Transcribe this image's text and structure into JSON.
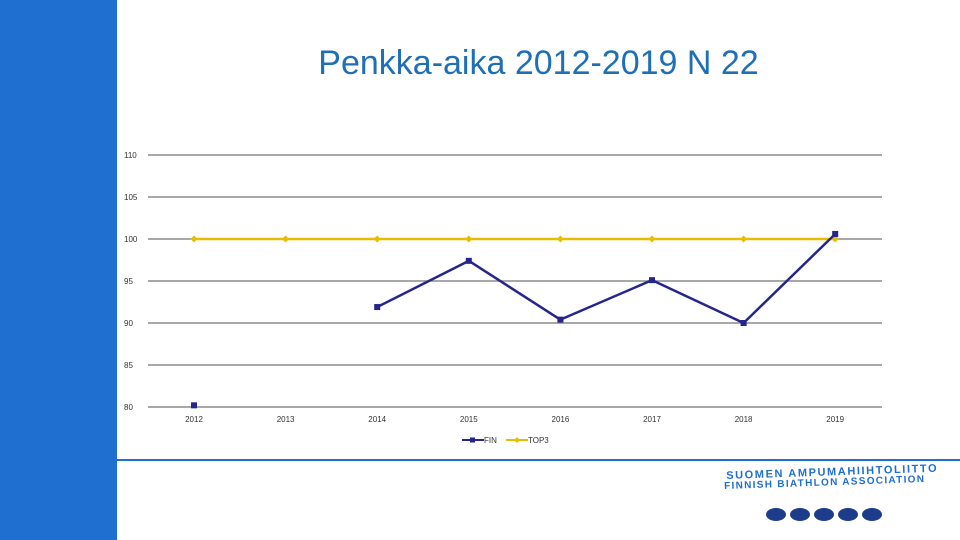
{
  "title": "Penkka-aika 2012-2019 N 22",
  "chart_data": {
    "type": "line",
    "title": "Penkka-aika 2012-2019 N 22",
    "categories": [
      "2012",
      "2013",
      "2014",
      "2015",
      "2016",
      "2017",
      "2018",
      "2019"
    ],
    "series": [
      {
        "name": "FIN",
        "color": "#25258c",
        "values": [
          80.2,
          null,
          91.9,
          97.4,
          90.4,
          95.1,
          90.0,
          100.6
        ]
      },
      {
        "name": "TOP3",
        "color": "#e6bd00",
        "values": [
          100,
          100,
          100,
          100,
          100,
          100,
          100,
          100
        ]
      }
    ],
    "yticks": [
      "80",
      "85",
      "90",
      "95",
      "100",
      "105",
      "110"
    ],
    "ylim": [
      80,
      110
    ],
    "grid": true,
    "legend": "bottom"
  },
  "logo": {
    "line1": "SUOMEN AMPUMAHIIHTOLIITTO",
    "line2": "FINNISH BIATHLON ASSOCIATION"
  }
}
